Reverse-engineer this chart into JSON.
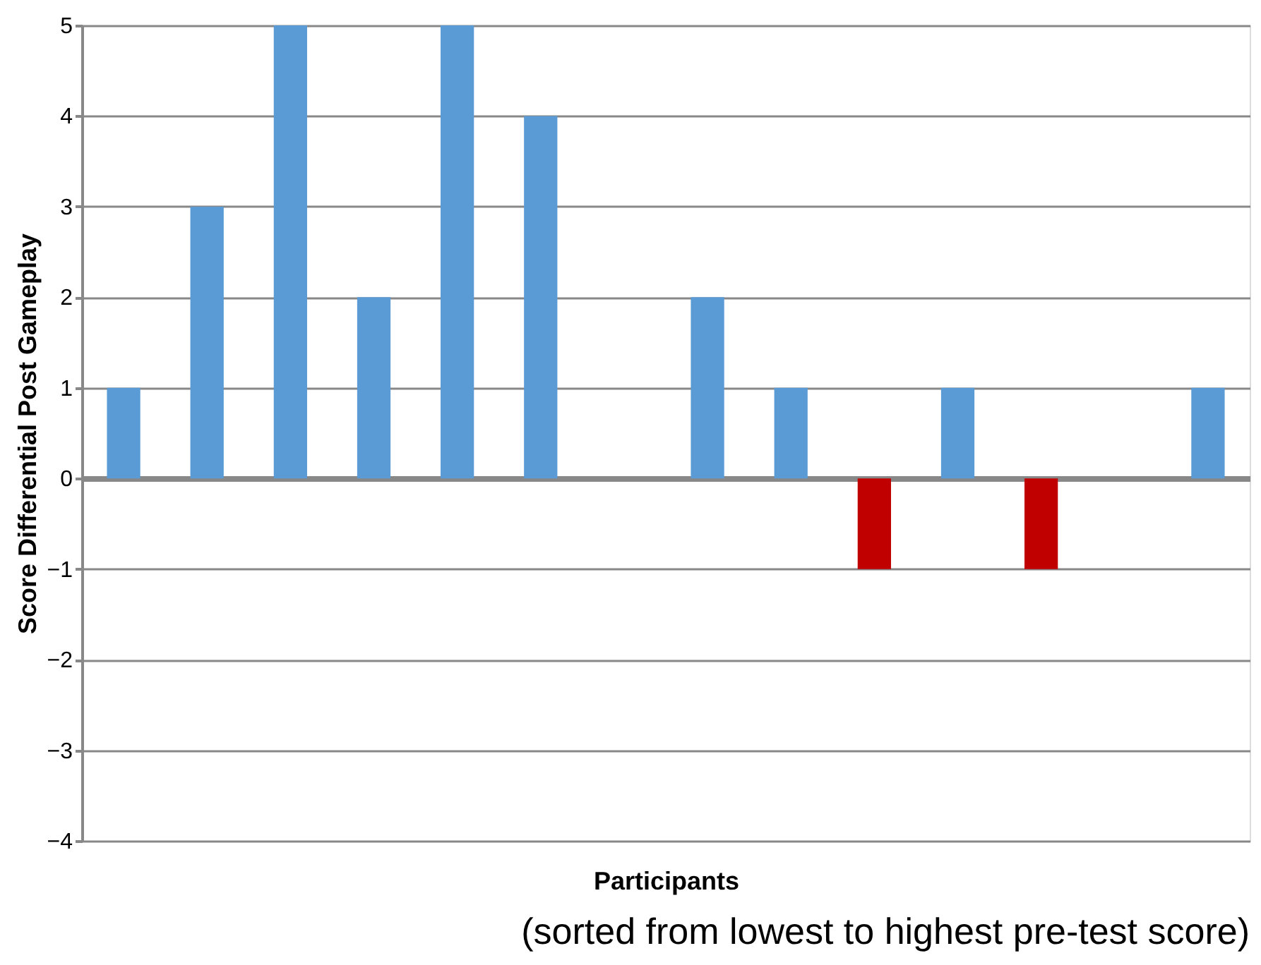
{
  "chart_data": {
    "type": "bar",
    "xlabel": "Participants",
    "ylabel": "Score Differential Post Gameplay",
    "annotations": [
      "(sorted from lowest to highest pre-test score)"
    ],
    "categories": [
      null,
      null,
      null,
      null,
      null,
      null,
      null,
      null,
      null,
      null,
      null,
      null,
      null,
      null
    ],
    "values": [
      1,
      3,
      5,
      2,
      5,
      4,
      0,
      2,
      1,
      -1,
      1,
      -1,
      0,
      1
    ],
    "colors": [
      "#5b9bd5",
      "#5b9bd5",
      "#5b9bd5",
      "#5b9bd5",
      "#5b9bd5",
      "#5b9bd5",
      "#5b9bd5",
      "#5b9bd5",
      "#5b9bd5",
      "#c00000",
      "#5b9bd5",
      "#c00000",
      "#5b9bd5",
      "#5b9bd5"
    ],
    "ylim": [
      -4,
      5
    ],
    "yticks": [
      -4,
      -3,
      -2,
      -1,
      0,
      1,
      2,
      3,
      4,
      5
    ],
    "grid": "y"
  }
}
